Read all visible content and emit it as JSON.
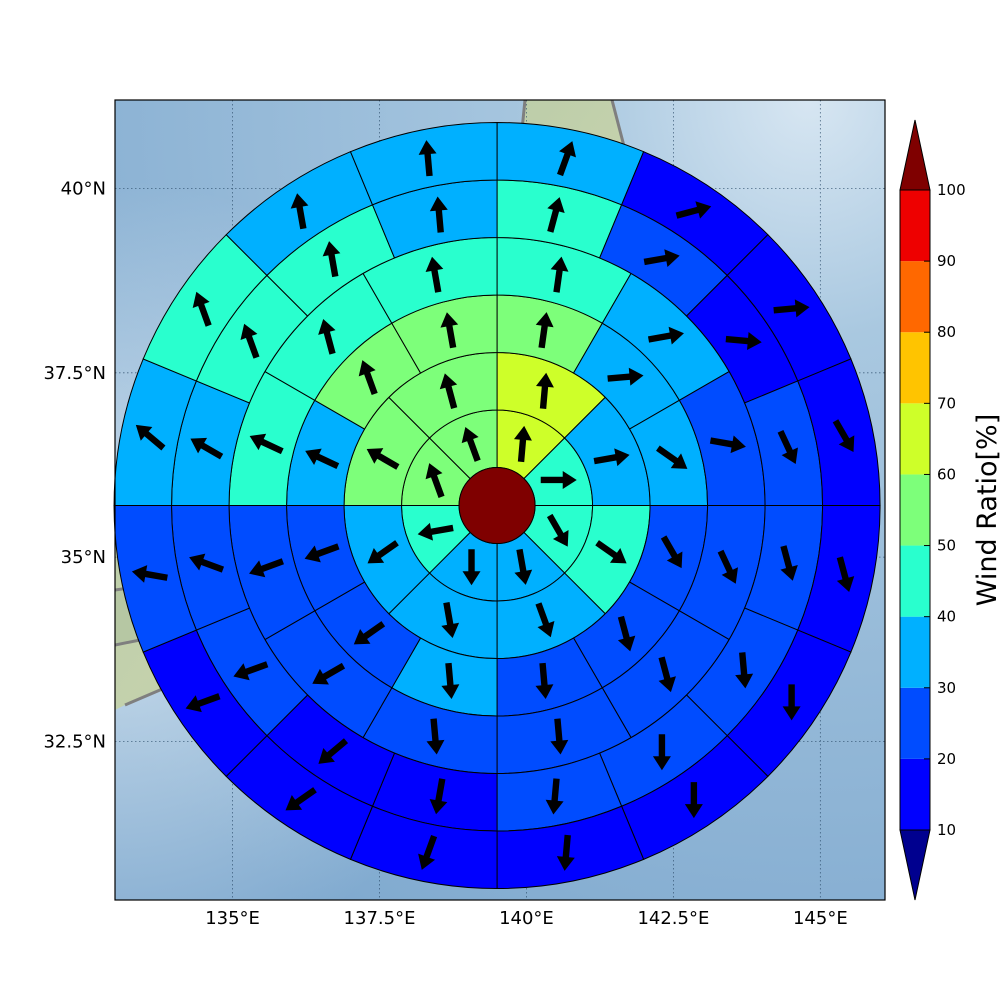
{
  "map": {
    "lon_range": [
      133.0,
      146.1
    ],
    "lat_range": [
      30.35,
      41.2
    ],
    "center": {
      "lon": 139.5,
      "lat": 35.7
    },
    "lon_ticks": [
      135,
      137.5,
      140,
      142.5,
      145
    ],
    "lat_ticks": [
      32.5,
      35,
      37.5,
      40
    ],
    "lon_tick_labels": [
      "135°E",
      "137.5°E",
      "140°E",
      "142.5°E",
      "145°E"
    ],
    "lat_tick_labels": [
      "32.5°N",
      "35°N",
      "37.5°N",
      "40°N"
    ],
    "gridlines": true,
    "background": "shaded relief with ocean",
    "coastline_color": "#7f7f7f"
  },
  "colorbar": {
    "title": "Wind Ratio[%]",
    "ticks": [
      10,
      20,
      30,
      40,
      50,
      60,
      70,
      80,
      90,
      100
    ],
    "tick_labels": [
      "10",
      "20",
      "30",
      "40",
      "50",
      "60",
      "70",
      "80",
      "90",
      "100"
    ],
    "levels": [
      {
        "min": 10,
        "max": 20,
        "color": "#0000ff"
      },
      {
        "min": 20,
        "max": 30,
        "color": "#004cff"
      },
      {
        "min": 30,
        "max": 40,
        "color": "#00b0ff"
      },
      {
        "min": 40,
        "max": 50,
        "color": "#29ffce"
      },
      {
        "min": 50,
        "max": 60,
        "color": "#7dff7a"
      },
      {
        "min": 60,
        "max": 70,
        "color": "#ceff29"
      },
      {
        "min": 70,
        "max": 80,
        "color": "#ffc400"
      },
      {
        "min": 80,
        "max": 90,
        "color": "#ff6800"
      },
      {
        "min": 90,
        "max": 100,
        "color": "#ee0000"
      }
    ],
    "under_color": "#00008f",
    "over_color": "#7f0000",
    "extend": "both"
  },
  "chart_data": {
    "type": "polar-sector-grid",
    "center_value_class": "over 100",
    "direction_note": "arrow angle in degrees clockwise from north",
    "rings": [
      {
        "name": "ring 1",
        "sectors": 8,
        "ratio_bins": [
          60,
          40,
          40,
          30,
          30,
          40,
          50,
          50
        ],
        "arrow_deg": [
          5,
          90,
          150,
          170,
          180,
          260,
          340,
          340
        ]
      },
      {
        "name": "ring 2",
        "sectors": 8,
        "ratio_bins": [
          60,
          30,
          40,
          30,
          30,
          30,
          50,
          50
        ],
        "arrow_deg": [
          5,
          80,
          125,
          160,
          170,
          235,
          300,
          345
        ]
      },
      {
        "name": "ring 3",
        "sectors": 12,
        "ratio_bins": [
          50,
          30,
          30,
          20,
          20,
          20,
          30,
          20,
          20,
          30,
          50,
          50
        ],
        "arrow_deg": [
          8,
          85,
          125,
          150,
          165,
          175,
          175,
          235,
          250,
          295,
          340,
          350
        ]
      },
      {
        "name": "ring 4",
        "sectors": 12,
        "ratio_bins": [
          40,
          30,
          20,
          20,
          20,
          20,
          20,
          20,
          20,
          40,
          40,
          40
        ],
        "arrow_deg": [
          8,
          80,
          100,
          155,
          165,
          175,
          175,
          240,
          250,
          295,
          345,
          350
        ]
      },
      {
        "name": "ring 5",
        "sectors": 16,
        "ratio_bins": [
          40,
          20,
          10,
          20,
          20,
          20,
          20,
          20,
          10,
          10,
          20,
          20,
          30,
          40,
          40,
          30
        ],
        "arrow_deg": [
          15,
          80,
          95,
          155,
          165,
          175,
          180,
          185,
          190,
          230,
          250,
          290,
          300,
          340,
          350,
          355
        ]
      },
      {
        "name": "ring 6",
        "sectors": 16,
        "ratio_bins": [
          30,
          10,
          10,
          10,
          10,
          10,
          10,
          10,
          10,
          10,
          10,
          20,
          30,
          40,
          30,
          30
        ],
        "arrow_deg": [
          20,
          75,
          85,
          150,
          165,
          180,
          180,
          185,
          200,
          235,
          250,
          280,
          310,
          340,
          350,
          355
        ]
      }
    ]
  }
}
